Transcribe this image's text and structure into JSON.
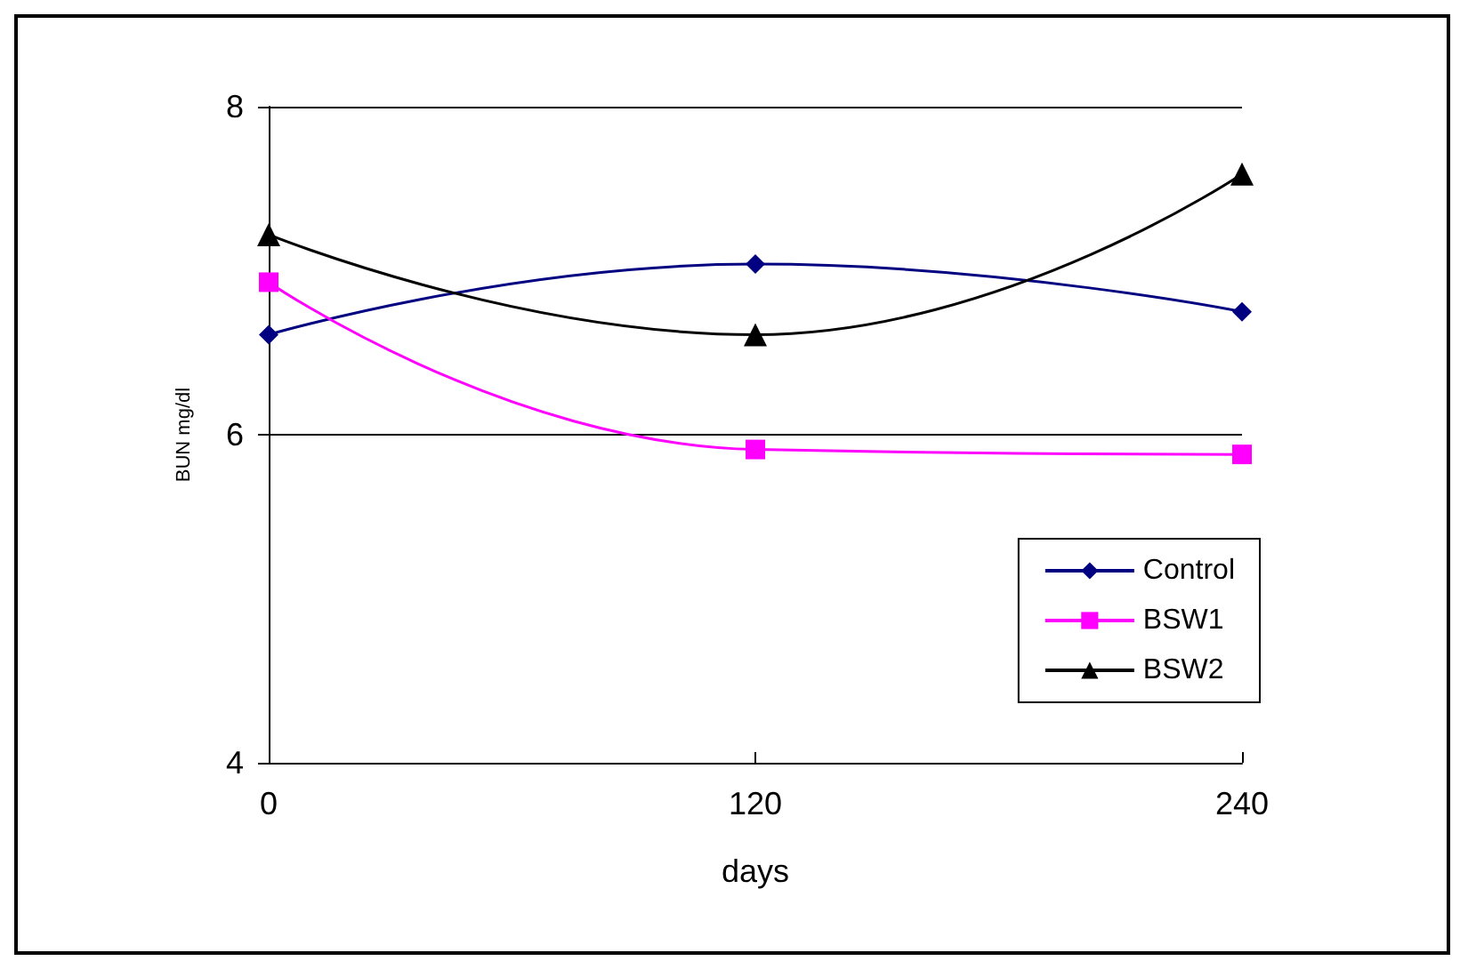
{
  "chart_data": {
    "type": "line",
    "xlabel": "days",
    "ylabel": "BUN mg/dl",
    "categories": [
      "0",
      "120",
      "240"
    ],
    "series": [
      {
        "name": "Control",
        "color": "#000080",
        "marker": "diamond",
        "values": [
          6.61,
          7.04,
          6.75
        ]
      },
      {
        "name": "BSW1",
        "color": "#ff00ff",
        "marker": "square",
        "values": [
          6.93,
          5.91,
          5.88
        ]
      },
      {
        "name": "BSW2",
        "color": "#000000",
        "marker": "triangle",
        "values": [
          7.22,
          6.61,
          7.59
        ]
      }
    ],
    "ylim": [
      4,
      8
    ],
    "yticks": [
      4,
      6,
      8
    ],
    "grid": "y",
    "legend": "bottom right"
  }
}
